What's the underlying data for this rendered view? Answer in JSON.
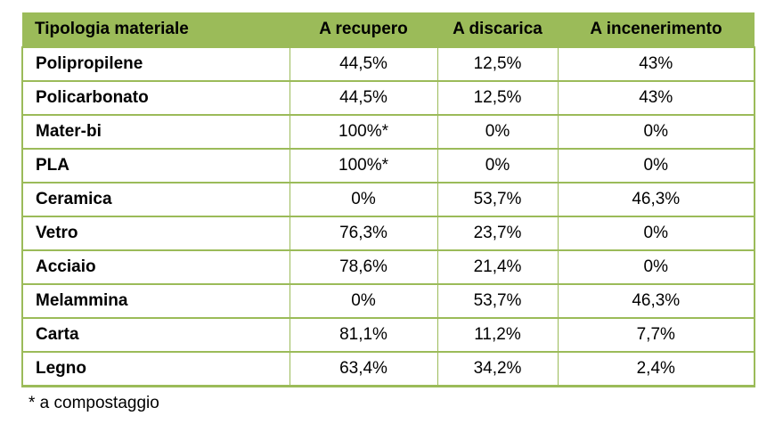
{
  "header": {
    "material_type": "Tipologia materiale",
    "recovery": "A recupero",
    "landfill": "A discarica",
    "incineration": "A incenerimento"
  },
  "rows": [
    {
      "material": "Polipropilene",
      "recovery": "44,5%",
      "landfill": "12,5%",
      "incineration": "43%"
    },
    {
      "material": "Policarbonato",
      "recovery": "44,5%",
      "landfill": "12,5%",
      "incineration": "43%"
    },
    {
      "material": "Mater-bi",
      "recovery": "100%*",
      "landfill": "0%",
      "incineration": "0%"
    },
    {
      "material": "PLA",
      "recovery": "100%*",
      "landfill": "0%",
      "incineration": "0%"
    },
    {
      "material": "Ceramica",
      "recovery": "0%",
      "landfill": "53,7%",
      "incineration": "46,3%"
    },
    {
      "material": "Vetro",
      "recovery": "76,3%",
      "landfill": "23,7%",
      "incineration": "0%"
    },
    {
      "material": "Acciaio",
      "recovery": "78,6%",
      "landfill": "21,4%",
      "incineration": "0%"
    },
    {
      "material": "Melammina",
      "recovery": "0%",
      "landfill": "53,7%",
      "incineration": "46,3%"
    },
    {
      "material": "Carta",
      "recovery": "81,1%",
      "landfill": "11,2%",
      "incineration": "7,7%"
    },
    {
      "material": "Legno",
      "recovery": "63,4%",
      "landfill": "34,2%",
      "incineration": "2,4%"
    }
  ],
  "footnote": "* a compostaggio",
  "colors": {
    "header_bg": "#9bbb59",
    "border": "#9bbb59"
  }
}
